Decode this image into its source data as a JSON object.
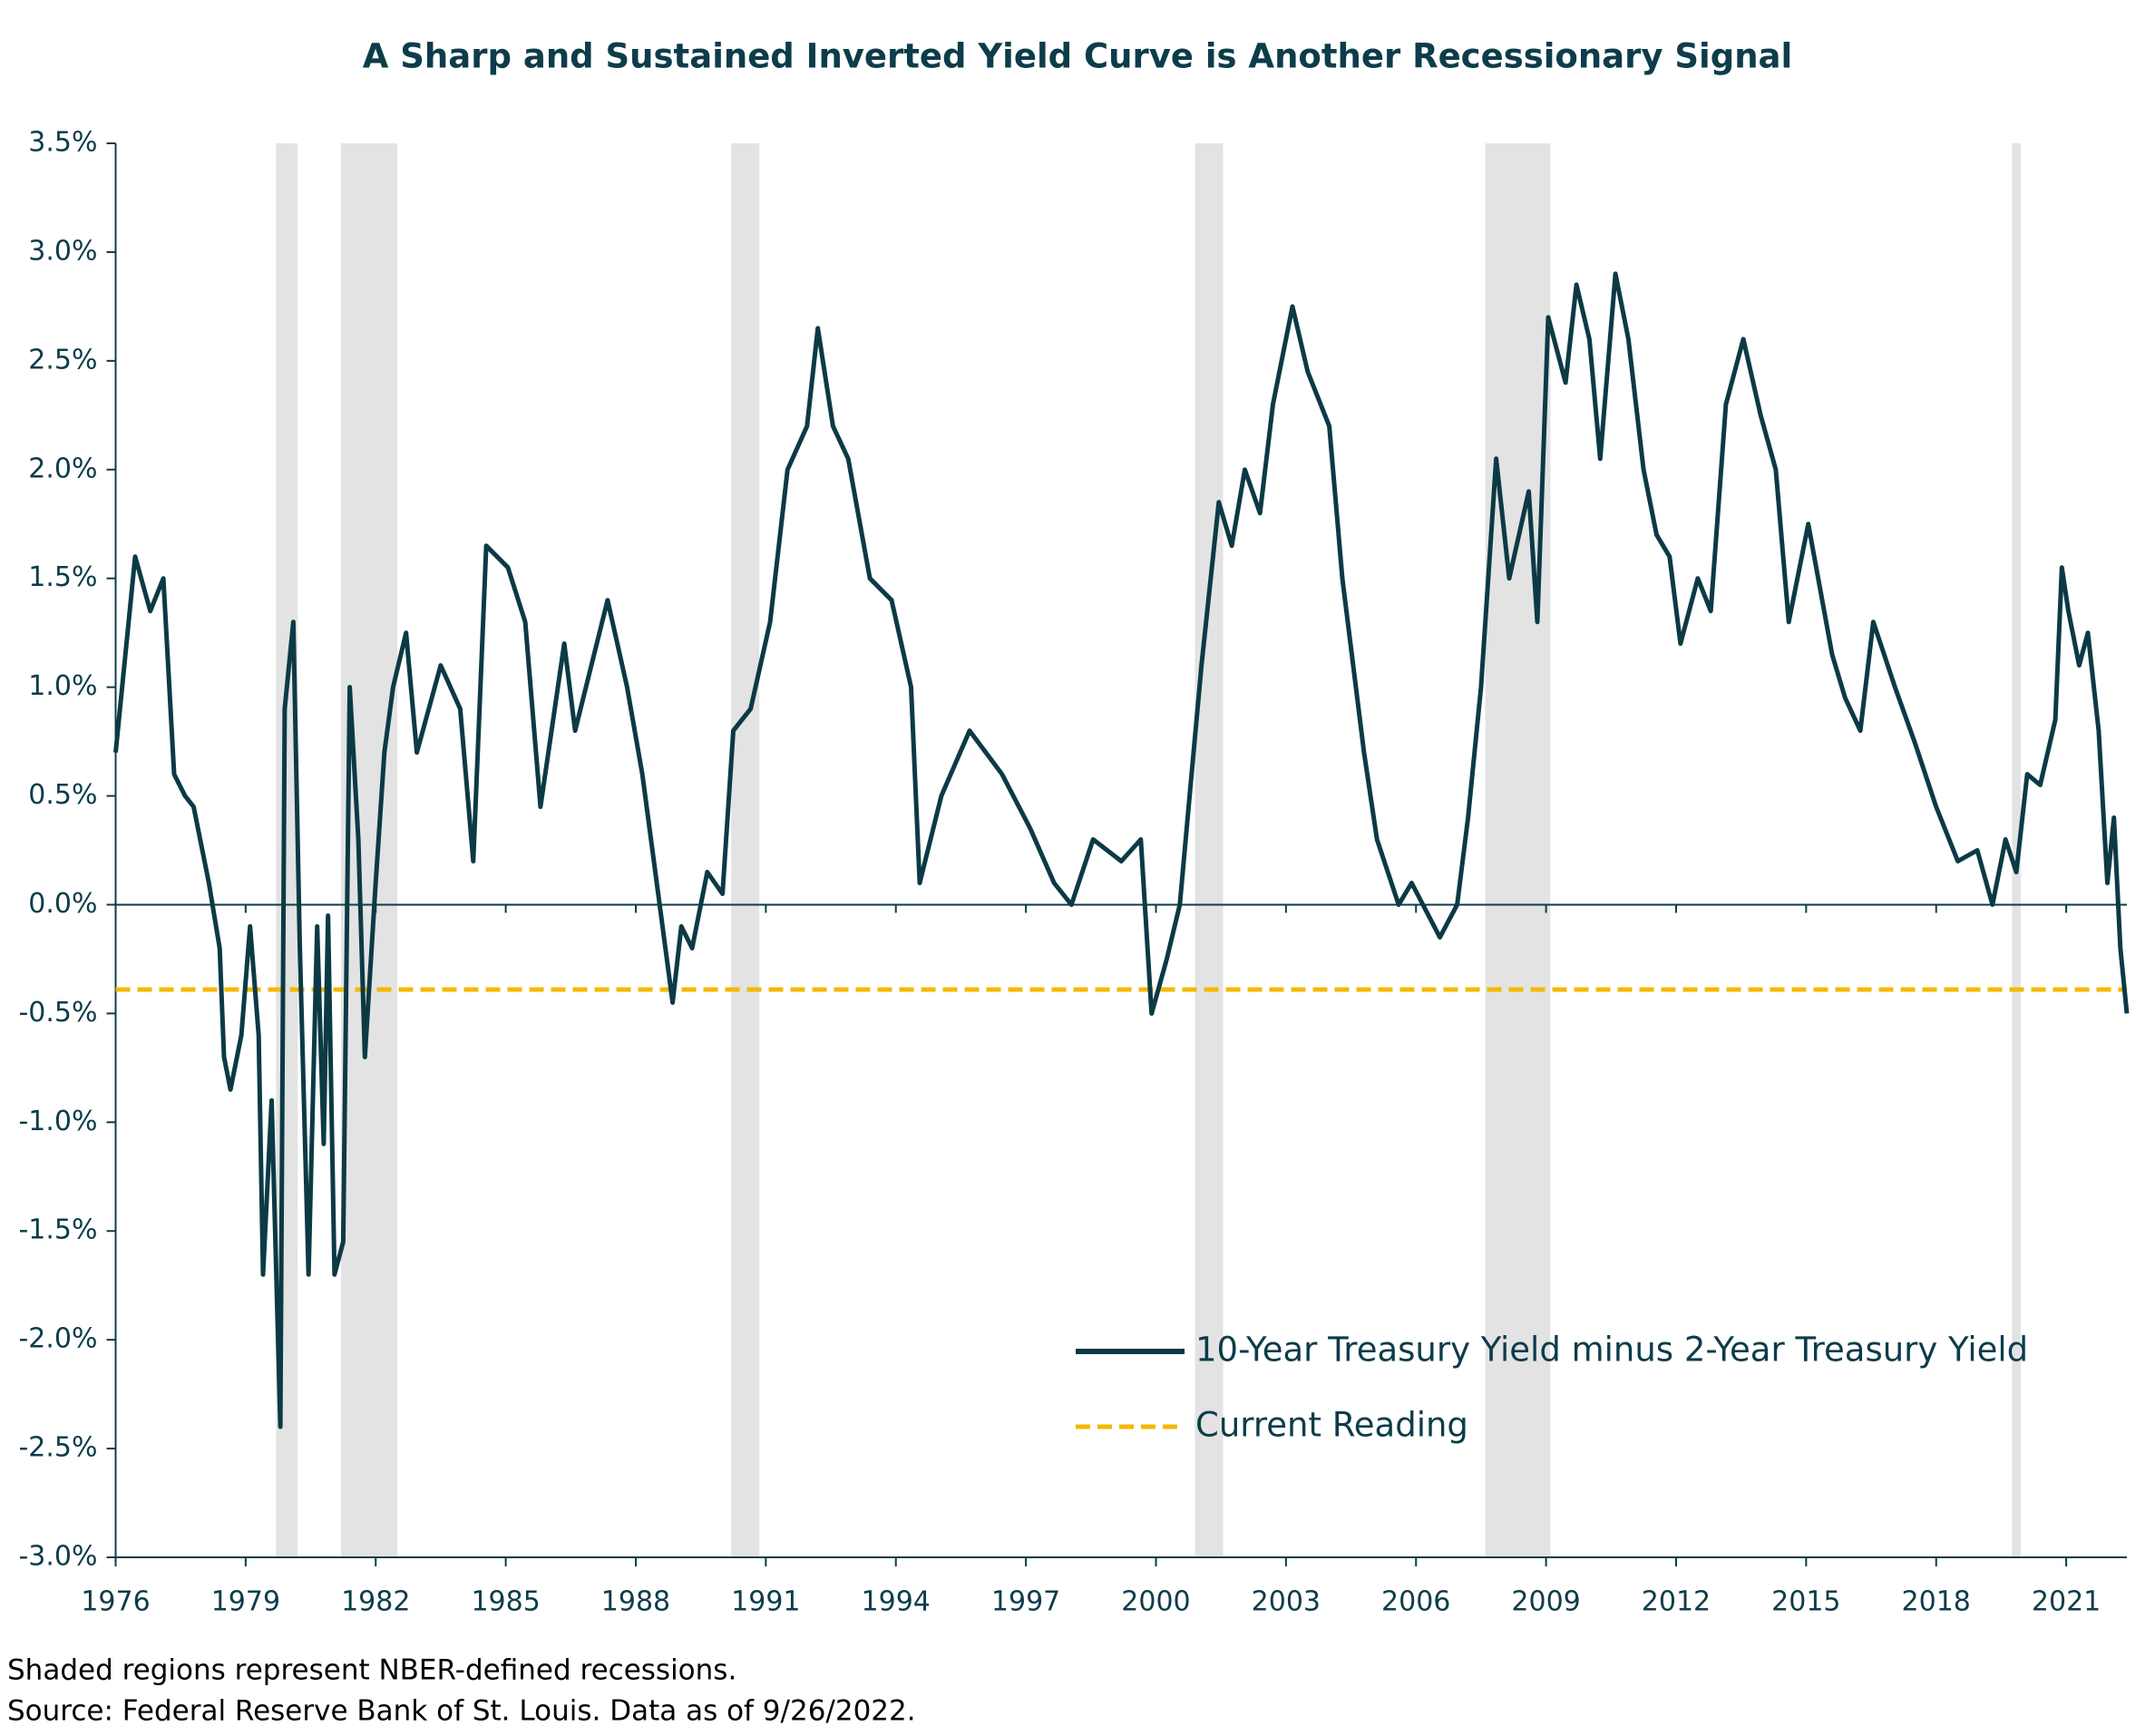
{
  "chart_data": {
    "type": "line",
    "title": "A Sharp and Sustained Inverted Yield Curve is Another Recessionary Signal",
    "notes": [
      "Shaded regions represent NBER-defined recessions.",
      "Source: Federal Reserve Bank of St. Louis. Data as of 9/26/2022."
    ],
    "x": [
      1976.0,
      1976.45,
      1976.8,
      1977.1,
      1977.35,
      1977.6,
      1977.8,
      1978.15,
      1978.4,
      1978.5,
      1978.65,
      1978.9,
      1979.1,
      1979.3,
      1979.4,
      1979.6,
      1979.8,
      1979.9,
      1980.1,
      1980.25,
      1980.45,
      1980.65,
      1980.8,
      1980.9,
      1981.05,
      1981.25,
      1981.4,
      1981.6,
      1981.75,
      1982.0,
      1982.2,
      1982.4,
      1982.7,
      1982.95,
      1983.5,
      1983.95,
      1984.25,
      1984.55,
      1985.05,
      1985.45,
      1985.8,
      1986.35,
      1986.6,
      1987.35,
      1987.8,
      1988.15,
      1988.55,
      1988.85,
      1989.05,
      1989.3,
      1989.65,
      1990.0,
      1990.25,
      1990.65,
      1991.1,
      1991.5,
      1991.95,
      1992.2,
      1992.55,
      1992.9,
      1993.4,
      1993.9,
      1994.35,
      1994.55,
      1995.05,
      1995.7,
      1996.45,
      1997.1,
      1997.65,
      1998.05,
      1998.55,
      1999.2,
      1999.65,
      1999.9,
      2000.25,
      2000.55,
      2000.8,
      2001.05,
      2001.45,
      2001.75,
      2002.05,
      2002.4,
      2002.7,
      2003.15,
      2003.5,
      2004.0,
      2004.3,
      2004.8,
      2005.1,
      2005.6,
      2005.9,
      2006.55,
      2006.95,
      2007.2,
      2007.5,
      2007.85,
      2008.15,
      2008.6,
      2008.8,
      2009.05,
      2009.45,
      2009.7,
      2010.0,
      2010.25,
      2010.6,
      2010.9,
      2011.25,
      2011.55,
      2011.85,
      2012.1,
      2012.5,
      2012.8,
      2013.15,
      2013.55,
      2013.95,
      2014.3,
      2014.6,
      2015.05,
      2015.6,
      2015.9,
      2016.25,
      2016.55,
      2017.05,
      2017.5,
      2018.0,
      2018.5,
      2018.95,
      2019.3,
      2019.6,
      2019.85,
      2020.1,
      2020.4,
      2020.75,
      2020.9,
      2021.05,
      2021.3,
      2021.5,
      2021.75,
      2021.95,
      2022.1,
      2022.25,
      2022.4
    ],
    "series": [
      {
        "name": "10-Year Treasury Yield minus 2-Year Treasury Yield",
        "color": "#0b3a45",
        "values": [
          0.7,
          1.6,
          1.35,
          1.5,
          0.6,
          0.5,
          0.45,
          0.1,
          -0.2,
          -0.7,
          -0.85,
          -0.6,
          -0.1,
          -0.6,
          -1.7,
          -0.9,
          -2.4,
          0.9,
          1.3,
          -0.2,
          -1.7,
          -0.1,
          -1.1,
          -0.05,
          -1.7,
          -1.55,
          1.0,
          0.3,
          -0.7,
          0.1,
          0.7,
          1.0,
          1.25,
          0.7,
          1.1,
          0.9,
          0.2,
          1.65,
          1.55,
          1.3,
          0.45,
          1.2,
          0.8,
          1.4,
          1.0,
          0.6,
          0.0,
          -0.45,
          -0.1,
          -0.2,
          0.15,
          0.05,
          0.8,
          0.9,
          1.3,
          2.0,
          2.2,
          2.65,
          2.2,
          2.05,
          1.5,
          1.4,
          1.0,
          0.1,
          0.5,
          0.8,
          0.6,
          0.35,
          0.1,
          0.0,
          0.3,
          0.2,
          0.3,
          -0.5,
          -0.25,
          0.0,
          0.55,
          1.1,
          1.85,
          1.65,
          2.0,
          1.8,
          2.3,
          2.75,
          2.45,
          2.2,
          1.5,
          0.7,
          0.3,
          0.0,
          0.1,
          -0.15,
          0.0,
          0.4,
          1.0,
          2.05,
          1.5,
          1.9,
          1.3,
          2.7,
          2.4,
          2.85,
          2.6,
          2.05,
          2.9,
          2.6,
          2.0,
          1.7,
          1.6,
          1.2,
          1.5,
          1.35,
          2.3,
          2.6,
          2.25,
          2.0,
          1.3,
          1.75,
          1.15,
          0.95,
          0.8,
          1.3,
          1.0,
          0.75,
          0.45,
          0.2,
          0.25,
          0.0,
          0.3,
          0.15,
          0.6,
          0.55,
          0.85,
          1.55,
          1.35,
          1.1,
          1.25,
          0.8,
          0.1,
          0.4,
          -0.2,
          -0.5
        ]
      }
    ],
    "current_reading": {
      "name": "Current Reading",
      "value": -0.39,
      "color": "#f5b800"
    },
    "recessions": [
      [
        1979.7,
        1980.2
      ],
      [
        1981.2,
        1982.5
      ],
      [
        1990.2,
        1990.85
      ],
      [
        2000.9,
        2001.55
      ],
      [
        2007.6,
        2009.1
      ],
      [
        2019.75,
        2019.95
      ]
    ],
    "recession_color": "#e3e3e3",
    "xlim": [
      1976,
      2022.4
    ],
    "xticks": [
      1976,
      1979,
      1982,
      1985,
      1988,
      1991,
      1994,
      1997,
      2000,
      2003,
      2006,
      2009,
      2012,
      2015,
      2018,
      2021
    ],
    "ylim": [
      -3.0,
      3.5
    ],
    "yticks": [
      {
        "value": -3.0,
        "label": "-3.0%"
      },
      {
        "value": -2.5,
        "label": "-2.5%"
      },
      {
        "value": -2.0,
        "label": "-2.0%"
      },
      {
        "value": -1.5,
        "label": "-1.5%"
      },
      {
        "value": -1.0,
        "label": "-1.0%"
      },
      {
        "value": -0.5,
        "label": "-0.5%"
      },
      {
        "value": 0,
        "label": "0.0%"
      },
      {
        "value": 0.5,
        "label": "0.5%"
      },
      {
        "value": 1.0,
        "label": "1.0%"
      },
      {
        "value": 1.5,
        "label": "1.5%"
      },
      {
        "value": 2.0,
        "label": "2.0%"
      },
      {
        "value": 2.5,
        "label": "2.5%"
      },
      {
        "value": 3.0,
        "label": "3.0%"
      },
      {
        "value": 3.5,
        "label": "3.5%"
      }
    ],
    "grid": false
  }
}
